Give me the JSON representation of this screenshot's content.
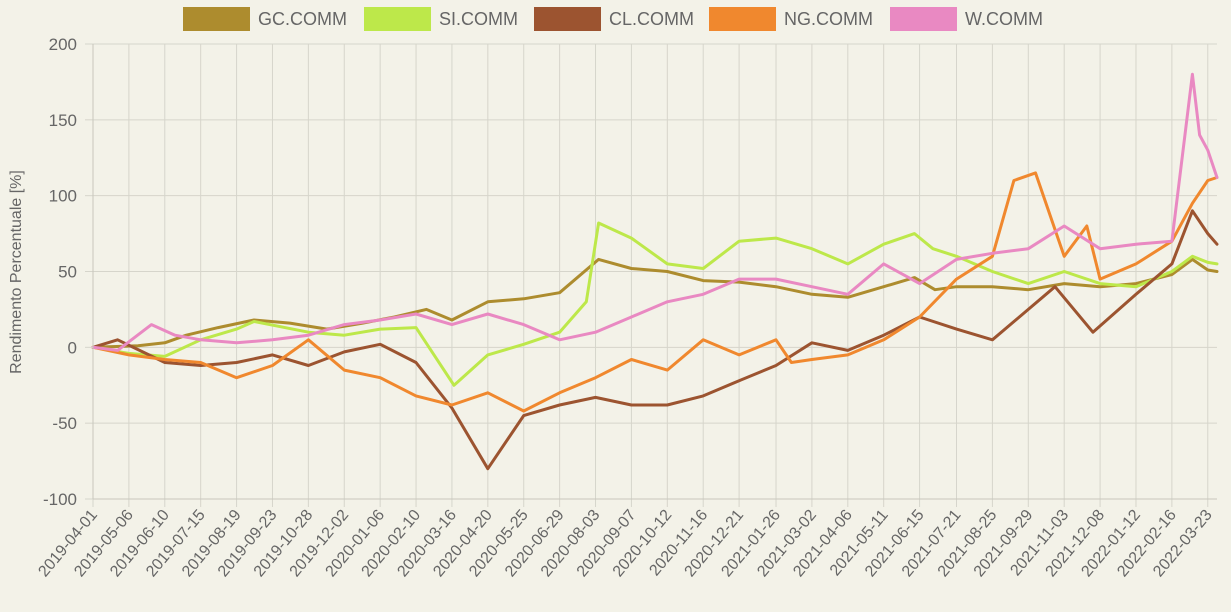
{
  "chart_data": {
    "type": "line",
    "title": "",
    "xlabel": "",
    "ylabel": "Rendimento Percentuale [%]",
    "ylim": [
      -100,
      200
    ],
    "yticks": [
      200,
      150,
      100,
      50,
      0,
      -50,
      -100
    ],
    "xlim": [
      "2019-04-01",
      "2022-04-01"
    ],
    "grid": true,
    "legend_position": "top",
    "x_tick_labels": [
      "2019-04-01",
      "2019-05-06",
      "2019-06-10",
      "2019-07-15",
      "2019-08-19",
      "2019-09-23",
      "2019-10-28",
      "2019-12-02",
      "2020-01-06",
      "2020-02-10",
      "2020-03-16",
      "2020-04-20",
      "2020-05-25",
      "2020-06-29",
      "2020-08-03",
      "2020-09-07",
      "2020-10-12",
      "2020-11-16",
      "2020-12-21",
      "2021-01-26",
      "2021-03-02",
      "2021-04-06",
      "2021-05-11",
      "2021-06-15",
      "2021-07-21",
      "2021-08-25",
      "2021-09-29",
      "2021-11-03",
      "2021-12-08",
      "2022-01-12",
      "2022-02-16",
      "2022-03-23"
    ],
    "series": [
      {
        "name": "GC.COMM",
        "color": "#ad8c2e",
        "points": [
          [
            "2019-04-01",
            0
          ],
          [
            "2019-05-15",
            1
          ],
          [
            "2019-06-10",
            3
          ],
          [
            "2019-07-01",
            8
          ],
          [
            "2019-08-01",
            13
          ],
          [
            "2019-09-05",
            18
          ],
          [
            "2019-10-10",
            16
          ],
          [
            "2019-11-15",
            12
          ],
          [
            "2019-12-20",
            16
          ],
          [
            "2020-01-20",
            20
          ],
          [
            "2020-02-20",
            25
          ],
          [
            "2020-03-16",
            18
          ],
          [
            "2020-04-20",
            30
          ],
          [
            "2020-05-25",
            32
          ],
          [
            "2020-06-29",
            36
          ],
          [
            "2020-08-06",
            58
          ],
          [
            "2020-09-07",
            52
          ],
          [
            "2020-10-12",
            50
          ],
          [
            "2020-11-16",
            44
          ],
          [
            "2020-12-21",
            43
          ],
          [
            "2021-01-26",
            40
          ],
          [
            "2021-03-02",
            35
          ],
          [
            "2021-04-06",
            33
          ],
          [
            "2021-05-11",
            40
          ],
          [
            "2021-06-10",
            46
          ],
          [
            "2021-06-30",
            38
          ],
          [
            "2021-07-21",
            40
          ],
          [
            "2021-08-25",
            40
          ],
          [
            "2021-09-29",
            38
          ],
          [
            "2021-11-03",
            42
          ],
          [
            "2021-12-08",
            40
          ],
          [
            "2022-01-12",
            42
          ],
          [
            "2022-02-16",
            48
          ],
          [
            "2022-03-08",
            58
          ],
          [
            "2022-03-23",
            51
          ],
          [
            "2022-04-01",
            50
          ]
        ]
      },
      {
        "name": "SI.COMM",
        "color": "#bde84a",
        "points": [
          [
            "2019-04-01",
            0
          ],
          [
            "2019-05-06",
            -4
          ],
          [
            "2019-06-10",
            -6
          ],
          [
            "2019-07-15",
            5
          ],
          [
            "2019-08-19",
            12
          ],
          [
            "2019-09-05",
            17
          ],
          [
            "2019-10-28",
            10
          ],
          [
            "2019-12-02",
            8
          ],
          [
            "2020-01-06",
            12
          ],
          [
            "2020-02-10",
            13
          ],
          [
            "2020-03-18",
            -25
          ],
          [
            "2020-04-20",
            -5
          ],
          [
            "2020-05-25",
            2
          ],
          [
            "2020-06-29",
            10
          ],
          [
            "2020-07-25",
            30
          ],
          [
            "2020-08-06",
            82
          ],
          [
            "2020-09-07",
            72
          ],
          [
            "2020-10-12",
            55
          ],
          [
            "2020-11-16",
            52
          ],
          [
            "2020-12-21",
            70
          ],
          [
            "2021-01-26",
            72
          ],
          [
            "2021-03-02",
            65
          ],
          [
            "2021-04-06",
            55
          ],
          [
            "2021-05-11",
            68
          ],
          [
            "2021-06-10",
            75
          ],
          [
            "2021-06-28",
            65
          ],
          [
            "2021-07-21",
            60
          ],
          [
            "2021-08-25",
            50
          ],
          [
            "2021-09-29",
            42
          ],
          [
            "2021-11-03",
            50
          ],
          [
            "2021-12-08",
            42
          ],
          [
            "2022-01-12",
            40
          ],
          [
            "2022-02-16",
            50
          ],
          [
            "2022-03-08",
            60
          ],
          [
            "2022-03-23",
            56
          ],
          [
            "2022-04-01",
            55
          ]
        ]
      },
      {
        "name": "CL.COMM",
        "color": "#9c5430",
        "points": [
          [
            "2019-04-01",
            0
          ],
          [
            "2019-04-25",
            5
          ],
          [
            "2019-06-10",
            -10
          ],
          [
            "2019-07-15",
            -12
          ],
          [
            "2019-08-19",
            -10
          ],
          [
            "2019-09-23",
            -5
          ],
          [
            "2019-10-28",
            -12
          ],
          [
            "2019-12-02",
            -3
          ],
          [
            "2020-01-06",
            2
          ],
          [
            "2020-02-10",
            -10
          ],
          [
            "2020-03-16",
            -40
          ],
          [
            "2020-04-20",
            -80
          ],
          [
            "2020-05-25",
            -45
          ],
          [
            "2020-06-29",
            -38
          ],
          [
            "2020-08-03",
            -33
          ],
          [
            "2020-09-07",
            -38
          ],
          [
            "2020-10-12",
            -38
          ],
          [
            "2020-11-16",
            -32
          ],
          [
            "2020-12-21",
            -22
          ],
          [
            "2021-01-26",
            -12
          ],
          [
            "2021-03-02",
            3
          ],
          [
            "2021-04-06",
            -2
          ],
          [
            "2021-05-11",
            8
          ],
          [
            "2021-06-15",
            20
          ],
          [
            "2021-07-21",
            12
          ],
          [
            "2021-08-25",
            5
          ],
          [
            "2021-09-29",
            25
          ],
          [
            "2021-10-25",
            40
          ],
          [
            "2021-12-01",
            10
          ],
          [
            "2022-01-12",
            35
          ],
          [
            "2022-02-16",
            55
          ],
          [
            "2022-03-08",
            90
          ],
          [
            "2022-03-23",
            75
          ],
          [
            "2022-04-01",
            68
          ]
        ]
      },
      {
        "name": "NG.COMM",
        "color": "#f0882e",
        "points": [
          [
            "2019-04-01",
            0
          ],
          [
            "2019-05-06",
            -5
          ],
          [
            "2019-06-10",
            -8
          ],
          [
            "2019-07-15",
            -10
          ],
          [
            "2019-08-19",
            -20
          ],
          [
            "2019-09-23",
            -12
          ],
          [
            "2019-10-28",
            5
          ],
          [
            "2019-12-02",
            -15
          ],
          [
            "2020-01-06",
            -20
          ],
          [
            "2020-02-10",
            -32
          ],
          [
            "2020-03-16",
            -38
          ],
          [
            "2020-04-20",
            -30
          ],
          [
            "2020-05-25",
            -42
          ],
          [
            "2020-06-29",
            -30
          ],
          [
            "2020-08-03",
            -20
          ],
          [
            "2020-09-07",
            -8
          ],
          [
            "2020-10-12",
            -15
          ],
          [
            "2020-11-16",
            5
          ],
          [
            "2020-12-21",
            -5
          ],
          [
            "2021-01-26",
            5
          ],
          [
            "2021-02-10",
            -10
          ],
          [
            "2021-03-02",
            -8
          ],
          [
            "2021-04-06",
            -5
          ],
          [
            "2021-05-11",
            5
          ],
          [
            "2021-06-15",
            20
          ],
          [
            "2021-07-21",
            45
          ],
          [
            "2021-08-25",
            60
          ],
          [
            "2021-09-15",
            110
          ],
          [
            "2021-10-06",
            115
          ],
          [
            "2021-11-03",
            60
          ],
          [
            "2021-11-25",
            80
          ],
          [
            "2021-12-08",
            45
          ],
          [
            "2022-01-12",
            55
          ],
          [
            "2022-02-16",
            70
          ],
          [
            "2022-03-08",
            95
          ],
          [
            "2022-03-23",
            110
          ],
          [
            "2022-04-01",
            112
          ]
        ]
      },
      {
        "name": "W.COMM",
        "color": "#e989c2",
        "points": [
          [
            "2019-04-01",
            0
          ],
          [
            "2019-04-25",
            -2
          ],
          [
            "2019-05-28",
            15
          ],
          [
            "2019-06-20",
            8
          ],
          [
            "2019-07-15",
            5
          ],
          [
            "2019-08-19",
            3
          ],
          [
            "2019-09-23",
            5
          ],
          [
            "2019-10-28",
            8
          ],
          [
            "2019-12-02",
            15
          ],
          [
            "2020-01-06",
            18
          ],
          [
            "2020-02-10",
            22
          ],
          [
            "2020-03-16",
            15
          ],
          [
            "2020-04-20",
            22
          ],
          [
            "2020-05-25",
            15
          ],
          [
            "2020-06-29",
            5
          ],
          [
            "2020-08-03",
            10
          ],
          [
            "2020-09-07",
            20
          ],
          [
            "2020-10-12",
            30
          ],
          [
            "2020-11-16",
            35
          ],
          [
            "2020-12-21",
            45
          ],
          [
            "2021-01-26",
            45
          ],
          [
            "2021-03-02",
            40
          ],
          [
            "2021-04-06",
            35
          ],
          [
            "2021-05-11",
            55
          ],
          [
            "2021-06-15",
            42
          ],
          [
            "2021-07-21",
            58
          ],
          [
            "2021-08-25",
            62
          ],
          [
            "2021-09-29",
            65
          ],
          [
            "2021-11-03",
            80
          ],
          [
            "2021-12-08",
            65
          ],
          [
            "2022-01-12",
            68
          ],
          [
            "2022-02-16",
            70
          ],
          [
            "2022-03-08",
            180
          ],
          [
            "2022-03-15",
            140
          ],
          [
            "2022-03-23",
            130
          ],
          [
            "2022-04-01",
            112
          ]
        ]
      }
    ]
  }
}
